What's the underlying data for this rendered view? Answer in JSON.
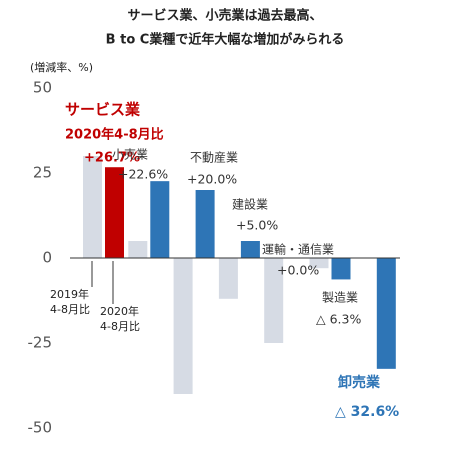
{
  "chart_data": {
    "type": "bar",
    "title": [
      "サービス業、小売業は過去最高、",
      "B to C業種で近年大幅な増加がみられる"
    ],
    "y_label": "(増減率、%)",
    "categories": [
      "サービス業",
      "小売業",
      "不動産業",
      "建設業",
      "運輸・通信業",
      "製造業",
      "卸売業"
    ],
    "highlight_subtitle": "2020年4-8月比",
    "series": [
      {
        "name": "2019年4-8月比",
        "color": "#d6dbe4",
        "values": [
          30,
          5,
          -40,
          -12,
          -25,
          -3,
          null
        ]
      },
      {
        "name": "2020年4-8月比",
        "colors": [
          "#c00000",
          "#2e75b6",
          "#2e75b6",
          "#2e75b6",
          "#2e75b6",
          "#2e75b6",
          "#2e75b6"
        ],
        "values": [
          26.7,
          22.6,
          20.0,
          5.0,
          0.0,
          -6.3,
          -32.6
        ],
        "value_labels": [
          "+26.7%",
          "+22.6%",
          "+20.0%",
          "+5.0%",
          "+0.0%",
          "△ 6.3%",
          "△ 32.6%"
        ]
      }
    ],
    "ylim": [
      -50,
      50
    ],
    "yticks": [
      -50,
      -25,
      0,
      25,
      50
    ],
    "grid": false
  }
}
